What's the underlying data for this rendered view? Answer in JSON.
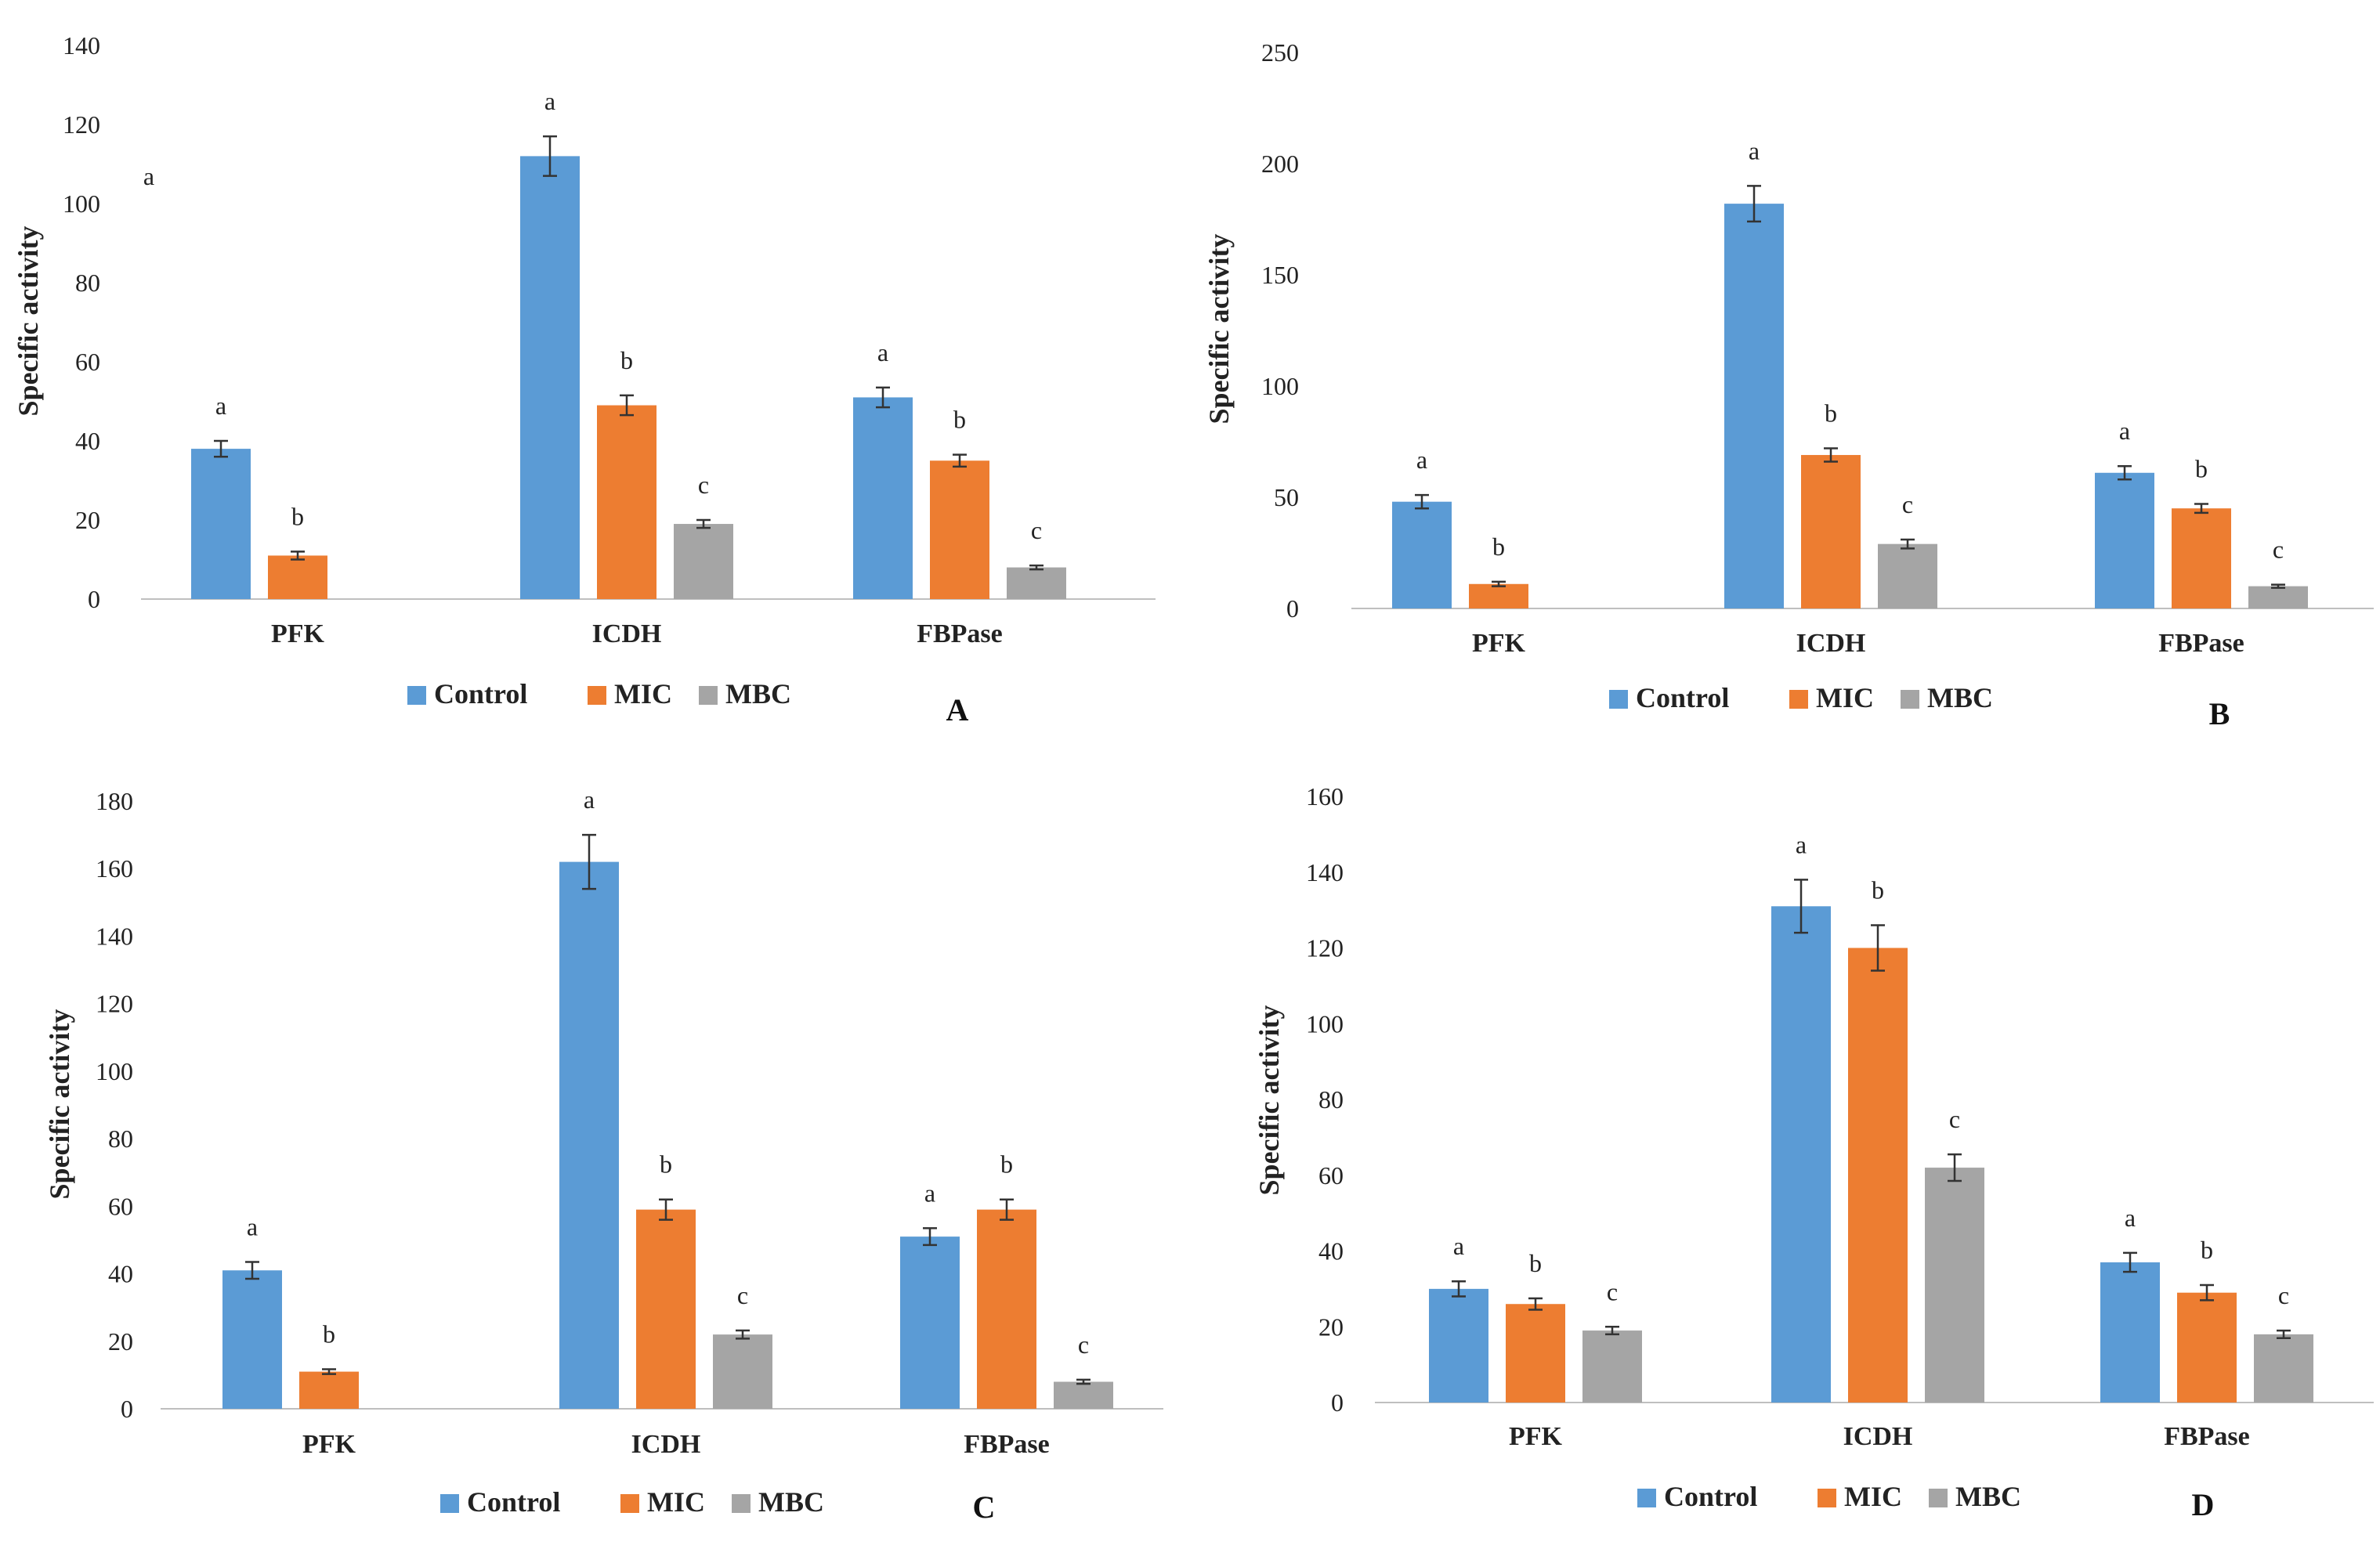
{
  "chart_data": [
    {
      "type": "bar",
      "panel_label": "A",
      "ylabel": "Specific activity",
      "ylim": [
        0,
        140
      ],
      "yticks": [
        "0",
        "20",
        "40",
        "60",
        "80",
        "100",
        "120",
        "140"
      ],
      "categories": [
        "PFK",
        "ICDH",
        "FBPase"
      ],
      "series": [
        {
          "name": "Control",
          "color": "#5b9bd5",
          "values": [
            38,
            112,
            51
          ],
          "errors": [
            2,
            5,
            2.5
          ],
          "letters": [
            "a",
            "a",
            "a"
          ]
        },
        {
          "name": "MIC",
          "color": "#ed7d31",
          "values": [
            11,
            49,
            35
          ],
          "errors": [
            1,
            2.5,
            1.5
          ],
          "letters": [
            "b",
            "b",
            "b"
          ]
        },
        {
          "name": "MBC",
          "color": "#a5a5a5",
          "values": [
            0,
            19,
            8
          ],
          "errors": [
            0,
            1,
            0.5
          ],
          "letters": [
            "",
            "c",
            "c"
          ]
        }
      ],
      "stray_label": "a",
      "legend": "bottom",
      "grid": false
    },
    {
      "type": "bar",
      "panel_label": "B",
      "ylabel": "Specific activity",
      "ylim": [
        0,
        250
      ],
      "yticks": [
        "0",
        "50",
        "100",
        "150",
        "200",
        "250"
      ],
      "categories": [
        "PFK",
        "ICDH",
        "FBPase"
      ],
      "series": [
        {
          "name": "Control",
          "color": "#5b9bd5",
          "values": [
            48,
            182,
            61
          ],
          "errors": [
            3,
            8,
            3
          ],
          "letters": [
            "a",
            "a",
            "a"
          ]
        },
        {
          "name": "MIC",
          "color": "#ed7d31",
          "values": [
            11,
            69,
            45
          ],
          "errors": [
            1,
            3,
            2
          ],
          "letters": [
            "b",
            "b",
            "b"
          ]
        },
        {
          "name": "MBC",
          "color": "#a5a5a5",
          "values": [
            0,
            29,
            10
          ],
          "errors": [
            0,
            2,
            0.7
          ],
          "letters": [
            "",
            "c",
            "c"
          ]
        }
      ],
      "legend": "bottom",
      "grid": false
    },
    {
      "type": "bar",
      "panel_label": "C",
      "ylabel": "Specific activity",
      "ylim": [
        0,
        180
      ],
      "yticks": [
        "0",
        "20",
        "40",
        "60",
        "80",
        "100",
        "120",
        "140",
        "160",
        "180"
      ],
      "categories": [
        "PFK",
        "ICDH",
        "FBPase"
      ],
      "series": [
        {
          "name": "Control",
          "color": "#5b9bd5",
          "values": [
            41,
            162,
            51
          ],
          "errors": [
            2.5,
            8,
            2.5
          ],
          "letters": [
            "a",
            "a",
            "a"
          ]
        },
        {
          "name": "MIC",
          "color": "#ed7d31",
          "values": [
            11,
            59,
            59
          ],
          "errors": [
            0.7,
            3,
            3
          ],
          "letters": [
            "b",
            "b",
            "b"
          ]
        },
        {
          "name": "MBC",
          "color": "#a5a5a5",
          "values": [
            0,
            22,
            8
          ],
          "errors": [
            0,
            1.2,
            0.6
          ],
          "letters": [
            "",
            "c",
            "c"
          ]
        }
      ],
      "legend": "bottom",
      "grid": false
    },
    {
      "type": "bar",
      "panel_label": "D",
      "ylabel": "Specific activity",
      "ylim": [
        0,
        160
      ],
      "yticks": [
        "0",
        "20",
        "40",
        "60",
        "80",
        "100",
        "120",
        "140",
        "160"
      ],
      "categories": [
        "PFK",
        "ICDH",
        "FBPase"
      ],
      "series": [
        {
          "name": "Control",
          "color": "#5b9bd5",
          "values": [
            30,
            131,
            37
          ],
          "errors": [
            2,
            7,
            2.5
          ],
          "letters": [
            "a",
            "a",
            "a"
          ]
        },
        {
          "name": "MIC",
          "color": "#ed7d31",
          "values": [
            26,
            120,
            29
          ],
          "errors": [
            1.5,
            6,
            2
          ],
          "letters": [
            "b",
            "b",
            "b"
          ]
        },
        {
          "name": "MBC",
          "color": "#a5a5a5",
          "values": [
            19,
            62,
            18
          ],
          "errors": [
            1,
            3.5,
            1
          ],
          "letters": [
            "c",
            "c",
            "c"
          ]
        }
      ],
      "legend": "bottom",
      "grid": false
    }
  ]
}
